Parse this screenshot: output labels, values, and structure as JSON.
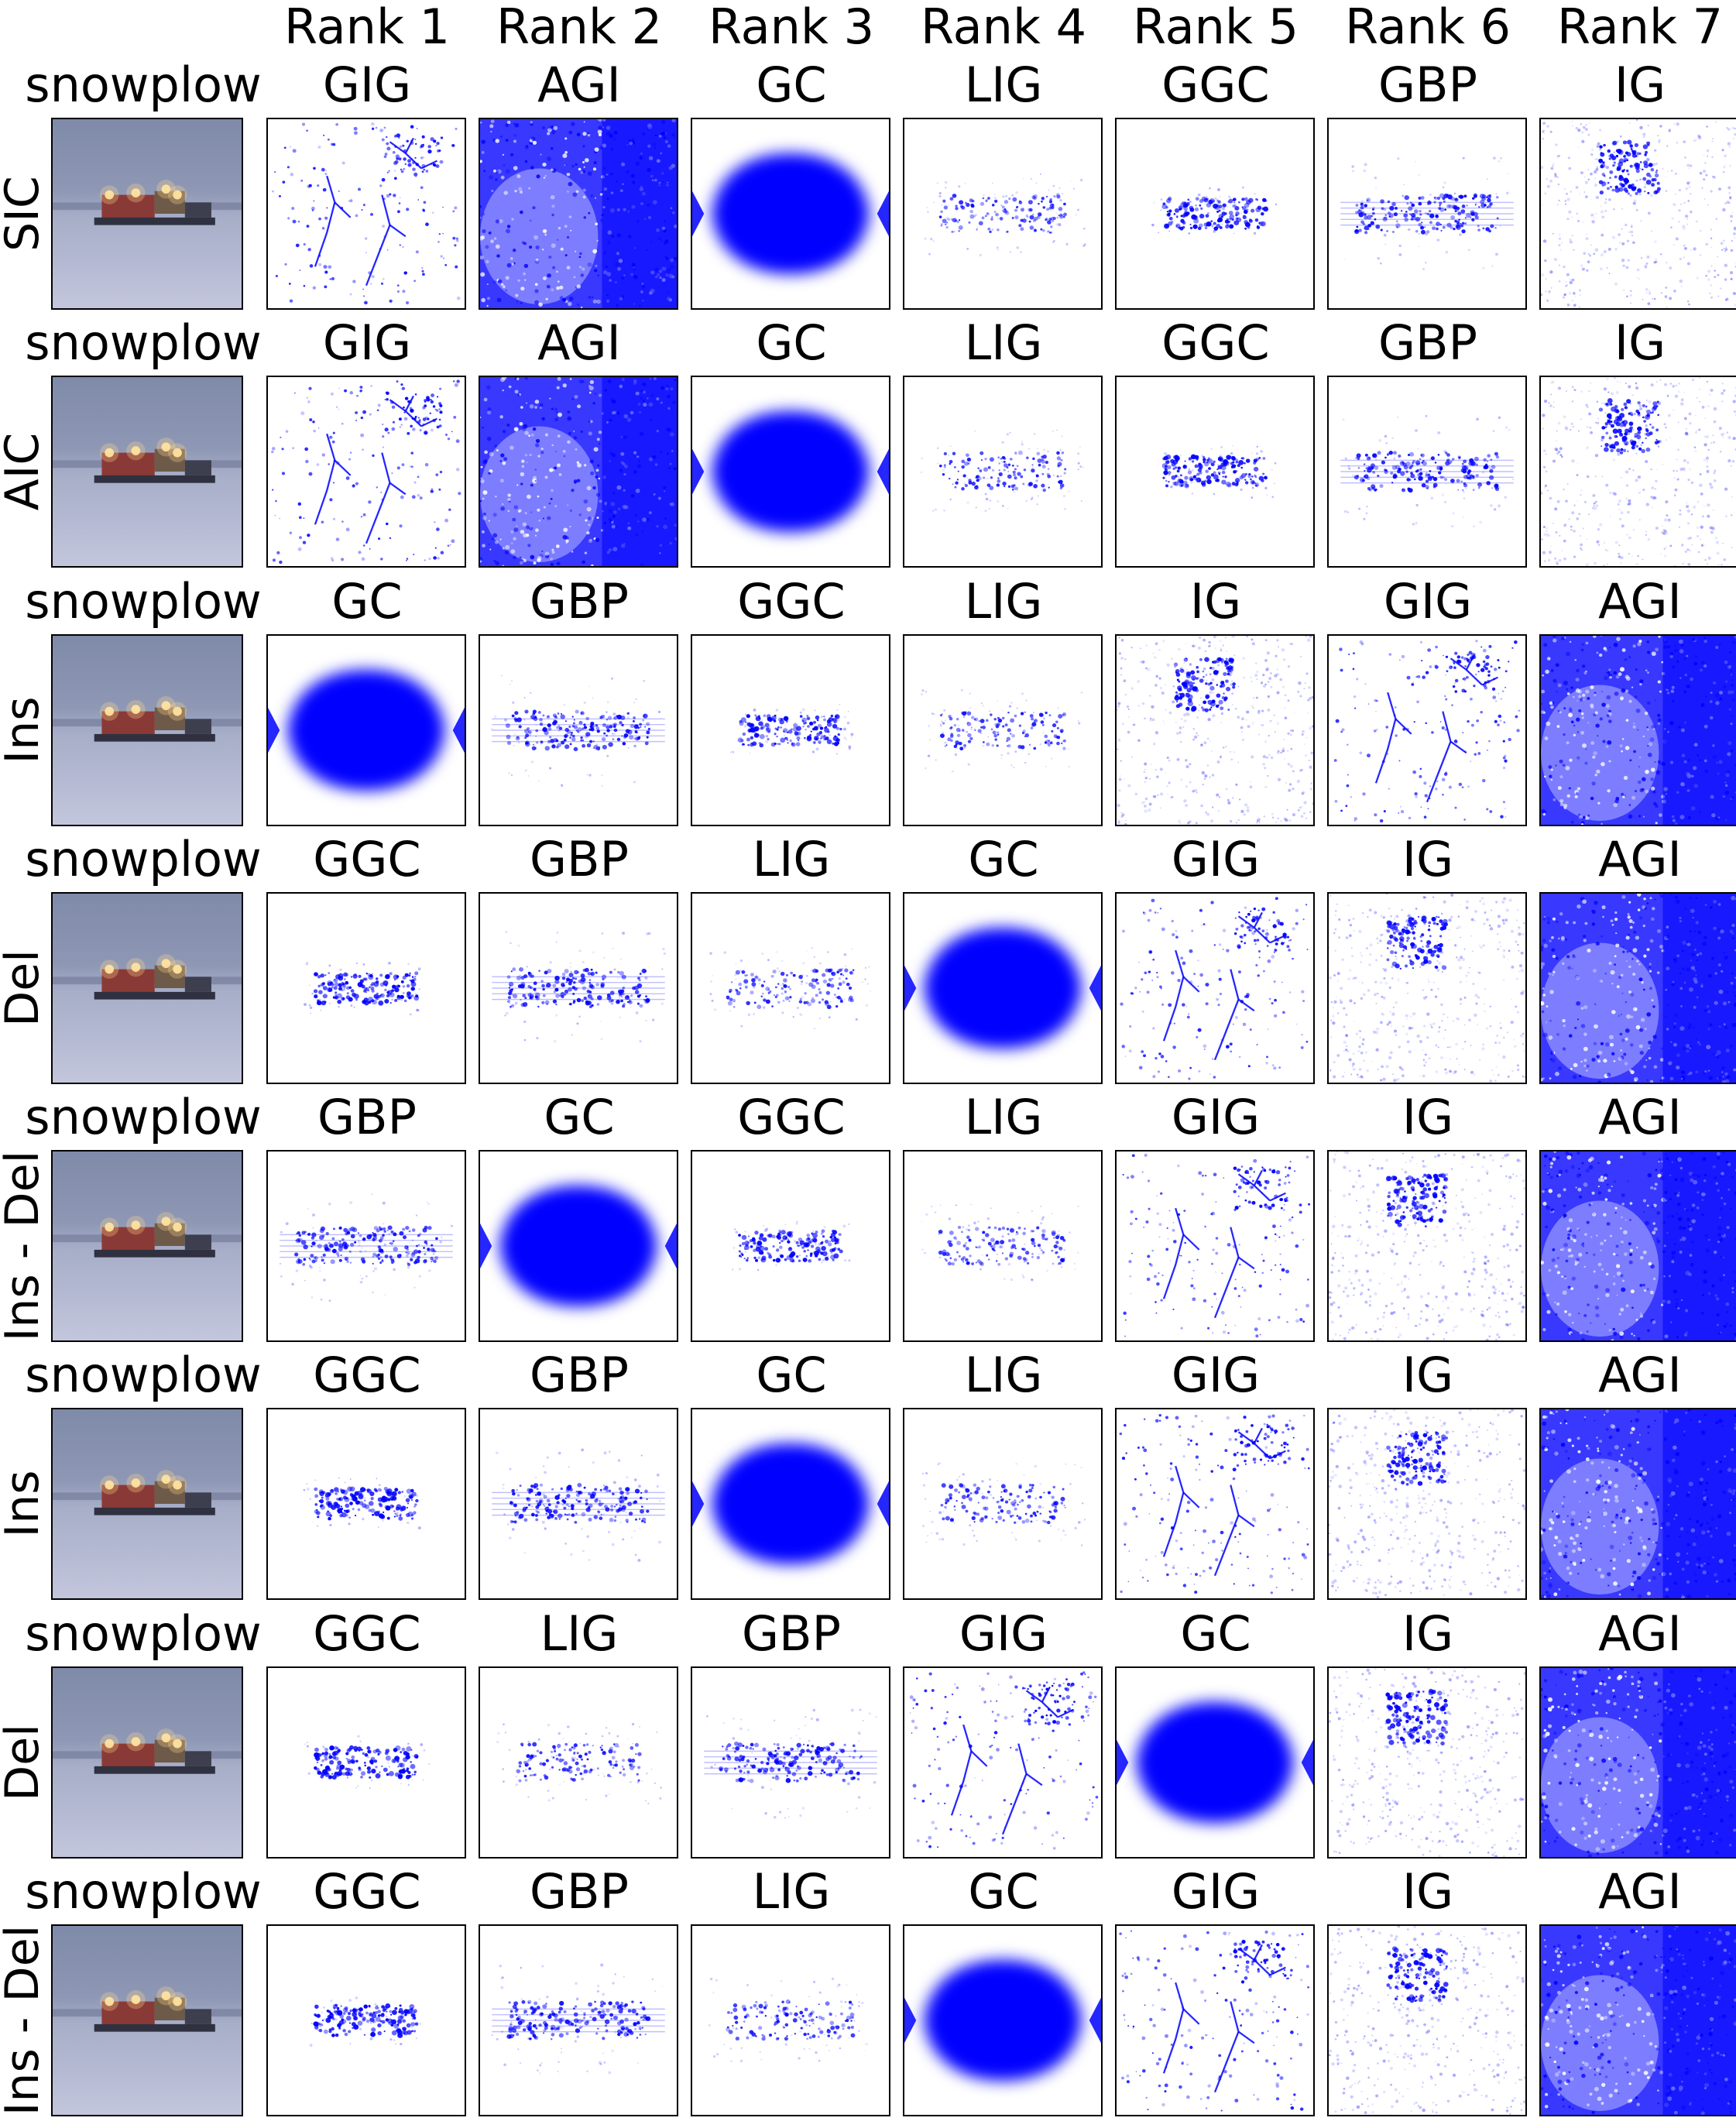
{
  "colors": {
    "attribution_blue": "#0000ff",
    "frame": "#000000",
    "background": "#ffffff"
  },
  "rank_headers": [
    "Rank 1",
    "Rank 2",
    "Rank 3",
    "Rank 4",
    "Rank 5",
    "Rank 6",
    "Rank 7"
  ],
  "rows": [
    {
      "metric": "SIC",
      "class_label": "snowplow",
      "methods": [
        "GIG",
        "AGI",
        "GC",
        "LIG",
        "GGC",
        "GBP",
        "IG"
      ]
    },
    {
      "metric": "AIC",
      "class_label": "snowplow",
      "methods": [
        "GIG",
        "AGI",
        "GC",
        "LIG",
        "GGC",
        "GBP",
        "IG"
      ]
    },
    {
      "metric": "Ins",
      "class_label": "snowplow",
      "methods": [
        "GC",
        "GBP",
        "GGC",
        "LIG",
        "IG",
        "GIG",
        "AGI"
      ]
    },
    {
      "metric": "Del",
      "class_label": "snowplow",
      "methods": [
        "GGC",
        "GBP",
        "LIG",
        "GC",
        "GIG",
        "IG",
        "AGI"
      ]
    },
    {
      "metric": "Ins - Del",
      "class_label": "snowplow",
      "methods": [
        "GBP",
        "GC",
        "GGC",
        "LIG",
        "GIG",
        "IG",
        "AGI"
      ]
    },
    {
      "metric": "Ins",
      "class_label": "snowplow",
      "methods": [
        "GGC",
        "GBP",
        "GC",
        "LIG",
        "GIG",
        "IG",
        "AGI"
      ]
    },
    {
      "metric": "Del",
      "class_label": "snowplow",
      "methods": [
        "GGC",
        "LIG",
        "GBP",
        "GIG",
        "GC",
        "IG",
        "AGI"
      ]
    },
    {
      "metric": "Ins - Del",
      "class_label": "snowplow",
      "methods": [
        "GGC",
        "GBP",
        "LIG",
        "GC",
        "GIG",
        "IG",
        "AGI"
      ]
    }
  ]
}
